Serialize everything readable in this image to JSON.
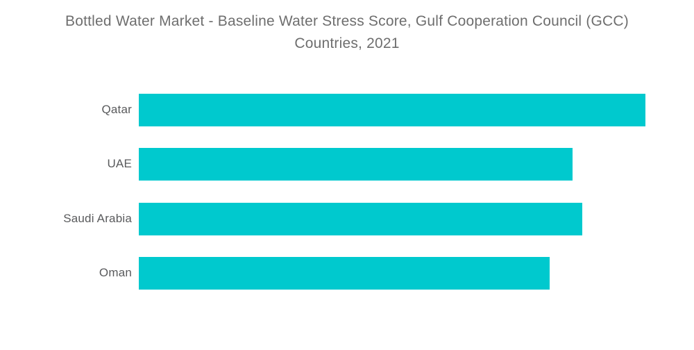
{
  "header": {
    "title_line1": "Bottled Water Market - Baseline Water Stress Score, Gulf Cooperation Council (GCC)",
    "title_line2": "Countries, 2021"
  },
  "chart_data": {
    "type": "bar",
    "orientation": "horizontal",
    "title": "Bottled Water Market - Baseline Water Stress Score, Gulf Cooperation Council (GCC) Countries, 2021",
    "categories": [
      "Qatar",
      "UAE",
      "Saudi Arabia",
      "Oman"
    ],
    "values": [
      4.97,
      4.26,
      4.35,
      4.03
    ],
    "xlabel": "",
    "ylabel": "",
    "xlim": [
      0,
      5
    ],
    "grid": false,
    "legend": false,
    "axis_shown": false,
    "value_labels_shown": false,
    "bar_color": "#00C9CE"
  },
  "colors": {
    "background": "#FFFFFF",
    "bar": "#00C9CE",
    "title_text": "#6E6E6E",
    "label_text": "#595A5C"
  }
}
